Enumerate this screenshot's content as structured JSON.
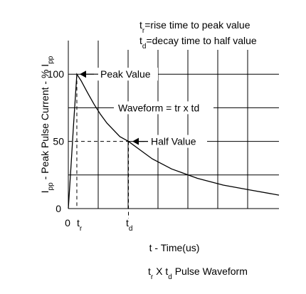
{
  "chart_data": {
    "type": "line",
    "title": "tr X td Pulse Waveform",
    "title_parts": {
      "a": "t",
      "a_sub": "r",
      "mid": " X t",
      "b_sub": "d",
      "rest": " Pulse Waveform"
    },
    "xlabel": "t - Time(us)",
    "ylabel_parts": {
      "a": "I",
      "a_sub": "pp",
      "mid": " - Peak Pulse Current - % I",
      "b_sub": "pp"
    },
    "ylim": [
      0,
      125
    ],
    "y_ticks": [
      {
        "value": 100,
        "label": "100"
      },
      {
        "value": 50,
        "label": "50"
      },
      {
        "value": 0,
        "label": "0"
      }
    ],
    "x_tick_labels": {
      "origin": "0",
      "tr": "t",
      "tr_sub": "r",
      "td": "t",
      "td_sub": "d"
    },
    "xlim": [
      0,
      8.16
    ],
    "tr": 0.33,
    "td": 2.33,
    "grid": true,
    "series": [
      {
        "x": [
          0,
          0.1,
          0.2,
          0.33,
          0.5,
          0.75,
          1.0,
          1.25,
          1.5,
          2.0,
          2.33,
          2.75,
          3.25,
          4.0,
          4.5,
          5.0,
          6.0,
          7.0,
          8.16
        ],
        "y": [
          0,
          30,
          62,
          100,
          95,
          86,
          77.5,
          70,
          63.5,
          53.5,
          50,
          44,
          37,
          29.5,
          26,
          22.5,
          17.5,
          14,
          10
        ]
      }
    ],
    "annotations": {
      "peak": "Peak Value",
      "waveform": "Waveform = tr x td",
      "half": "Half Value"
    },
    "legend": {
      "line1": {
        "a": "t",
        "a_sub": "r",
        "text": "=rise time to peak value"
      },
      "line2": {
        "a": "t",
        "a_sub": "d",
        "text": "=decay time to half value"
      }
    }
  }
}
